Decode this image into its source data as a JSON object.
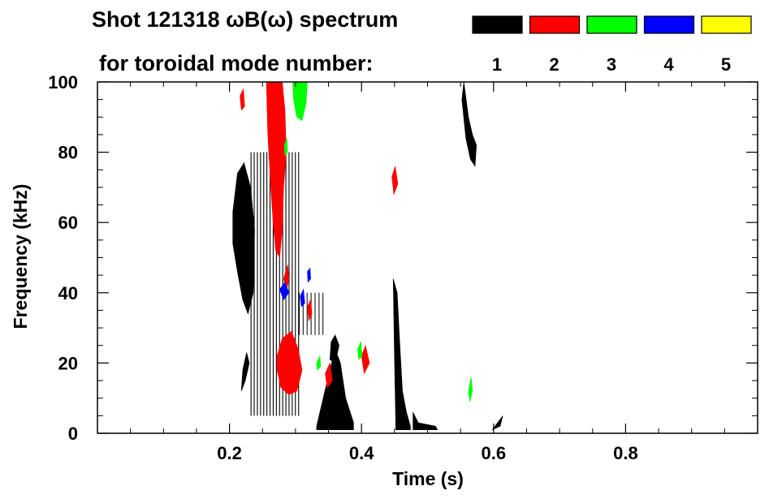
{
  "chart_data": {
    "type": "heatmap",
    "title_line1": "Shot 121318 ωB(ω) spectrum",
    "title_line2": "for toroidal mode number:",
    "xlabel": "Time (s)",
    "ylabel": "Frequency (kHz)",
    "xlim": [
      0.0,
      1.0
    ],
    "ylim": [
      0,
      100
    ],
    "x_ticks": [
      0.2,
      0.4,
      0.6,
      0.8
    ],
    "x_tick_labels": [
      "0.2",
      "0.4",
      "0.6",
      "0.8"
    ],
    "y_ticks": [
      0,
      20,
      40,
      60,
      80,
      100
    ],
    "y_tick_labels": [
      "0",
      "20",
      "40",
      "60",
      "80",
      "100"
    ],
    "grid": false,
    "legend_position": "top-right",
    "modes": [
      {
        "label": "1",
        "color": "#000000"
      },
      {
        "label": "2",
        "color": "#ff0000"
      },
      {
        "label": "3",
        "color": "#00ff00"
      },
      {
        "label": "4",
        "color": "#0000ff"
      },
      {
        "label": "5",
        "color": "#ffff00"
      }
    ],
    "regions": [
      {
        "mode": 1,
        "shape": "poly",
        "points": [
          [
            0.205,
            63
          ],
          [
            0.212,
            74
          ],
          [
            0.222,
            77
          ],
          [
            0.232,
            70
          ],
          [
            0.238,
            58
          ],
          [
            0.236,
            40
          ],
          [
            0.228,
            34
          ],
          [
            0.22,
            38
          ],
          [
            0.212,
            46
          ],
          [
            0.205,
            54
          ]
        ]
      },
      {
        "mode": 1,
        "shape": "poly",
        "points": [
          [
            0.332,
            2
          ],
          [
            0.342,
            10
          ],
          [
            0.352,
            18
          ],
          [
            0.36,
            24
          ],
          [
            0.368,
            20
          ],
          [
            0.376,
            10
          ],
          [
            0.388,
            3
          ],
          [
            0.388,
            1
          ],
          [
            0.332,
            1
          ]
        ]
      },
      {
        "mode": 1,
        "shape": "poly",
        "points": [
          [
            0.448,
            44
          ],
          [
            0.454,
            40
          ],
          [
            0.458,
            25
          ],
          [
            0.462,
            12
          ],
          [
            0.468,
            6
          ],
          [
            0.474,
            2
          ],
          [
            0.474,
            1
          ],
          [
            0.452,
            1
          ],
          [
            0.45,
            20
          ]
        ]
      },
      {
        "mode": 1,
        "shape": "poly",
        "points": [
          [
            0.478,
            6
          ],
          [
            0.486,
            3
          ],
          [
            0.512,
            2
          ],
          [
            0.515,
            1
          ],
          [
            0.478,
            1
          ]
        ]
      },
      {
        "mode": 1,
        "shape": "poly",
        "points": [
          [
            0.555,
            100
          ],
          [
            0.562,
            90
          ],
          [
            0.568,
            85
          ],
          [
            0.574,
            82
          ],
          [
            0.572,
            76
          ],
          [
            0.565,
            78
          ],
          [
            0.558,
            84
          ],
          [
            0.552,
            95
          ]
        ]
      },
      {
        "mode": 1,
        "shape": "poly",
        "points": [
          [
            0.598,
            1
          ],
          [
            0.606,
            3
          ],
          [
            0.614,
            5
          ],
          [
            0.61,
            2
          ]
        ]
      },
      {
        "mode": 1,
        "shape": "poly",
        "points": [
          [
            0.352,
            21
          ],
          [
            0.36,
            20
          ],
          [
            0.366,
            25
          ],
          [
            0.36,
            28
          ],
          [
            0.354,
            26
          ]
        ]
      },
      {
        "mode": 1,
        "shape": "poly",
        "points": [
          [
            0.218,
            12
          ],
          [
            0.224,
            15
          ],
          [
            0.23,
            20
          ],
          [
            0.226,
            23
          ],
          [
            0.22,
            18
          ]
        ]
      },
      {
        "mode": 1,
        "shape": "stripes",
        "x0": 0.232,
        "x1": 0.305,
        "step": 0.0048,
        "y0": 5,
        "y1": 80,
        "width": 0.0013
      },
      {
        "mode": 1,
        "shape": "stripes",
        "x0": 0.305,
        "x1": 0.345,
        "step": 0.006,
        "y0": 28,
        "y1": 40,
        "width": 0.0012
      },
      {
        "mode": 2,
        "shape": "poly",
        "points": [
          [
            0.256,
            100
          ],
          [
            0.268,
            100
          ],
          [
            0.28,
            100
          ],
          [
            0.284,
            92
          ],
          [
            0.286,
            80
          ],
          [
            0.282,
            70
          ],
          [
            0.28,
            58
          ],
          [
            0.276,
            50
          ],
          [
            0.27,
            52
          ],
          [
            0.266,
            60
          ],
          [
            0.262,
            72
          ],
          [
            0.258,
            85
          ]
        ]
      },
      {
        "mode": 2,
        "shape": "poly",
        "points": [
          [
            0.272,
            22
          ],
          [
            0.28,
            27
          ],
          [
            0.294,
            29
          ],
          [
            0.304,
            24
          ],
          [
            0.31,
            18
          ],
          [
            0.302,
            12
          ],
          [
            0.29,
            11
          ],
          [
            0.278,
            13
          ],
          [
            0.272,
            18
          ]
        ]
      },
      {
        "mode": 2,
        "shape": "poly",
        "points": [
          [
            0.282,
            44
          ],
          [
            0.288,
            48
          ],
          [
            0.29,
            44
          ],
          [
            0.286,
            40
          ]
        ]
      },
      {
        "mode": 2,
        "shape": "poly",
        "points": [
          [
            0.446,
            73
          ],
          [
            0.451,
            76
          ],
          [
            0.455,
            71
          ],
          [
            0.449,
            68
          ]
        ]
      },
      {
        "mode": 2,
        "shape": "poly",
        "points": [
          [
            0.4,
            22
          ],
          [
            0.406,
            25
          ],
          [
            0.412,
            20
          ],
          [
            0.404,
            17
          ]
        ]
      },
      {
        "mode": 2,
        "shape": "poly",
        "points": [
          [
            0.345,
            17
          ],
          [
            0.352,
            20
          ],
          [
            0.356,
            15
          ],
          [
            0.348,
            13
          ]
        ]
      },
      {
        "mode": 2,
        "shape": "poly",
        "points": [
          [
            0.318,
            36
          ],
          [
            0.323,
            38
          ],
          [
            0.325,
            34
          ],
          [
            0.32,
            32
          ]
        ]
      },
      {
        "mode": 2,
        "shape": "poly",
        "points": [
          [
            0.216,
            96
          ],
          [
            0.221,
            98
          ],
          [
            0.223,
            93
          ],
          [
            0.218,
            92
          ]
        ]
      },
      {
        "mode": 3,
        "shape": "poly",
        "points": [
          [
            0.296,
            100
          ],
          [
            0.318,
            100
          ],
          [
            0.316,
            94
          ],
          [
            0.31,
            89
          ],
          [
            0.302,
            90
          ],
          [
            0.297,
            95
          ]
        ]
      },
      {
        "mode": 3,
        "shape": "poly",
        "points": [
          [
            0.562,
            12
          ],
          [
            0.566,
            16
          ],
          [
            0.568,
            12
          ],
          [
            0.564,
            9
          ]
        ]
      },
      {
        "mode": 3,
        "shape": "poly",
        "points": [
          [
            0.394,
            24
          ],
          [
            0.399,
            26
          ],
          [
            0.401,
            22
          ],
          [
            0.396,
            21
          ]
        ]
      },
      {
        "mode": 3,
        "shape": "poly",
        "points": [
          [
            0.283,
            82
          ],
          [
            0.287,
            84
          ],
          [
            0.288,
            80
          ],
          [
            0.284,
            79
          ]
        ]
      },
      {
        "mode": 3,
        "shape": "poly",
        "points": [
          [
            0.332,
            20
          ],
          [
            0.337,
            22
          ],
          [
            0.338,
            19
          ],
          [
            0.333,
            18
          ]
        ]
      },
      {
        "mode": 4,
        "shape": "poly",
        "points": [
          [
            0.276,
            41
          ],
          [
            0.284,
            43
          ],
          [
            0.29,
            40
          ],
          [
            0.282,
            38
          ]
        ]
      },
      {
        "mode": 4,
        "shape": "poly",
        "points": [
          [
            0.307,
            39
          ],
          [
            0.312,
            41
          ],
          [
            0.314,
            37
          ],
          [
            0.309,
            36
          ]
        ]
      },
      {
        "mode": 4,
        "shape": "poly",
        "points": [
          [
            0.318,
            46
          ],
          [
            0.322,
            47
          ],
          [
            0.323,
            44
          ],
          [
            0.319,
            43
          ]
        ]
      }
    ]
  }
}
